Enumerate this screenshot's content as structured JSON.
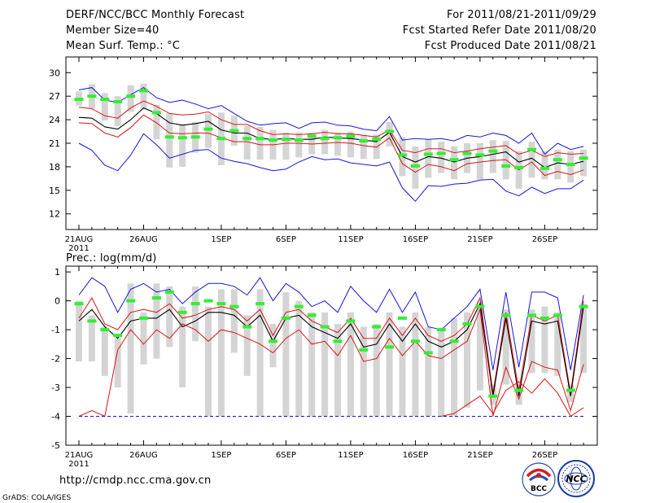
{
  "header": {
    "title": "DERF/NCC/BCC Monthly Forecast",
    "member_size": "Member Size=40",
    "variable": "Mean Surf. Temp.: °C",
    "forecast_period": "For 2011/08/21-2011/09/29",
    "fcst_started": "Fcst Started Refer Date 2011/08/20",
    "fcst_produced": "Fcst Produced Date 2011/08/21"
  },
  "footer": {
    "url": "http://cmdp.ncc.cma.gov.cn",
    "grads_credit": "GrADS: COLA/IGES",
    "logo_bcc_text": "BCC",
    "logo_ncc_text": "NCC"
  },
  "colors": {
    "envelope": "#1414dc",
    "ensemble_band": "#dc1414",
    "ensemble_mean": "#000000",
    "control": "#33ee33",
    "box": "#d4d4d4"
  },
  "chart_data": [
    {
      "type": "line",
      "title": "Mean Surf. Temp.: °C",
      "ylim": [
        10,
        32
      ],
      "yticks": [
        12,
        15,
        18,
        21,
        24,
        27,
        30
      ],
      "xticks": [
        {
          "day": 0,
          "label": "21AUG"
        },
        {
          "day": 5,
          "label": "26AUG"
        },
        {
          "day": 11,
          "label": "1SEP"
        },
        {
          "day": 16,
          "label": "6SEP"
        },
        {
          "day": 21,
          "label": "11SEP"
        },
        {
          "day": 26,
          "label": "16SEP"
        },
        {
          "day": 31,
          "label": "21SEP"
        },
        {
          "day": 36,
          "label": "26SEP"
        }
      ],
      "first_year_label": "2011",
      "days": [
        0,
        1,
        2,
        3,
        4,
        5,
        6,
        7,
        8,
        9,
        10,
        11,
        12,
        13,
        14,
        15,
        16,
        17,
        18,
        19,
        20,
        21,
        22,
        23,
        24,
        25,
        26,
        27,
        28,
        29,
        30,
        31,
        32,
        33,
        34,
        35,
        36,
        37,
        38,
        39
      ],
      "series": [
        {
          "name": "max",
          "values": [
            27.8,
            28.1,
            26.5,
            26.2,
            27.2,
            28.1,
            26.8,
            26.2,
            26.5,
            26.0,
            25.4,
            25.8,
            24.8,
            23.8,
            23.3,
            23.5,
            23.6,
            22.9,
            23.6,
            23.7,
            23.3,
            23.2,
            22.8,
            22.6,
            24.4,
            21.4,
            21.6,
            21.5,
            21.6,
            21.3,
            22.0,
            21.8,
            22.3,
            22.0,
            21.0,
            22.3,
            19.6,
            21.0,
            20.2,
            20.6
          ]
        },
        {
          "name": "upper",
          "values": [
            25.6,
            25.4,
            24.5,
            24.2,
            25.5,
            26.4,
            25.7,
            24.8,
            24.6,
            24.7,
            25.0,
            24.0,
            23.4,
            23.4,
            22.6,
            22.1,
            22.2,
            22.1,
            22.2,
            22.4,
            22.2,
            22.2,
            22.0,
            21.8,
            22.7,
            20.1,
            19.8,
            20.3,
            20.3,
            19.8,
            20.0,
            20.3,
            20.5,
            20.7,
            19.6,
            20.1,
            19.3,
            19.8,
            19.6,
            19.7
          ]
        },
        {
          "name": "mean",
          "values": [
            24.3,
            24.2,
            23.1,
            22.8,
            24.0,
            25.5,
            24.8,
            23.6,
            23.3,
            23.5,
            23.8,
            22.7,
            22.3,
            22.3,
            21.6,
            21.5,
            21.6,
            21.5,
            21.5,
            21.8,
            21.7,
            21.6,
            21.4,
            21.2,
            22.4,
            19.3,
            18.6,
            19.3,
            19.1,
            18.6,
            19.1,
            19.3,
            19.6,
            19.9,
            18.6,
            19.1,
            17.9,
            18.5,
            18.3,
            18.7
          ]
        },
        {
          "name": "lower",
          "values": [
            23.6,
            23.5,
            22.3,
            21.8,
            23.0,
            24.6,
            23.6,
            22.3,
            22.2,
            22.3,
            22.3,
            21.7,
            21.2,
            21.2,
            20.8,
            20.8,
            21.0,
            21.0,
            20.9,
            21.0,
            21.1,
            21.0,
            20.7,
            20.5,
            21.7,
            18.4,
            17.3,
            18.3,
            18.0,
            17.5,
            18.4,
            18.6,
            18.8,
            18.9,
            17.6,
            18.6,
            16.9,
            17.4,
            17.0,
            17.6
          ]
        },
        {
          "name": "min",
          "values": [
            21.0,
            20.1,
            18.2,
            17.5,
            19.5,
            22.2,
            20.8,
            19.1,
            19.6,
            20.1,
            20.2,
            19.1,
            18.7,
            18.4,
            17.9,
            17.5,
            17.7,
            18.6,
            19.3,
            18.9,
            19.0,
            18.5,
            18.3,
            18.1,
            18.6,
            15.3,
            13.6,
            15.6,
            15.5,
            15.8,
            15.9,
            16.3,
            16.4,
            14.9,
            14.3,
            15.4,
            14.6,
            15.2,
            15.2,
            16.3
          ]
        },
        {
          "name": "control",
          "values": [
            26.6,
            27.0,
            26.6,
            26.3,
            27.0,
            27.7,
            24.9,
            21.8,
            21.7,
            21.8,
            22.8,
            21.6,
            22.6,
            21.6,
            21.6,
            21.4,
            21.5,
            21.4,
            21.9,
            21.6,
            21.7,
            21.9,
            21.3,
            21.5,
            22.5,
            19.5,
            18.1,
            19.6,
            19.7,
            18.9,
            19.7,
            19.5,
            20.0,
            18.1,
            17.9,
            20.2,
            17.8,
            18.9,
            18.3,
            19.1
          ]
        }
      ],
      "boxes": [
        [
          25.8,
          27.6
        ],
        [
          25.4,
          28.5
        ],
        [
          23.9,
          27.4
        ],
        [
          23.2,
          27.0
        ],
        [
          25.0,
          28.4
        ],
        [
          25.3,
          28.6
        ],
        [
          21.5,
          25.9
        ],
        [
          17.9,
          24.8
        ],
        [
          18.0,
          23.4
        ],
        [
          19.8,
          23.7
        ],
        [
          20.4,
          24.7
        ],
        [
          18.2,
          24.9
        ],
        [
          20.7,
          24.5
        ],
        [
          18.9,
          23.2
        ],
        [
          18.9,
          23.1
        ],
        [
          18.9,
          22.7
        ],
        [
          18.9,
          22.3
        ],
        [
          19.2,
          22.4
        ],
        [
          19.6,
          22.3
        ],
        [
          19.6,
          22.7
        ],
        [
          19.4,
          22.4
        ],
        [
          19.2,
          22.5
        ],
        [
          19.0,
          22.1
        ],
        [
          19.0,
          22.1
        ],
        [
          20.6,
          23.7
        ],
        [
          16.8,
          21.8
        ],
        [
          15.2,
          20.6
        ],
        [
          16.6,
          21.5
        ],
        [
          17.2,
          21.2
        ],
        [
          16.4,
          20.6
        ],
        [
          17.2,
          21.0
        ],
        [
          16.4,
          21.0
        ],
        [
          17.2,
          21.4
        ],
        [
          16.4,
          21.3
        ],
        [
          15.2,
          20.0
        ],
        [
          16.6,
          21.2
        ],
        [
          16.4,
          20.0
        ],
        [
          16.4,
          20.2
        ],
        [
          16.0,
          20.0
        ],
        [
          16.8,
          20.2
        ]
      ]
    },
    {
      "type": "line",
      "title": "Prec.: log(mm/d)",
      "ylim": [
        -5,
        1.2
      ],
      "yticks": [
        -5,
        -4,
        -3,
        -2,
        -1,
        0,
        1
      ],
      "xticks": [
        {
          "day": 0,
          "label": "21AUG"
        },
        {
          "day": 5,
          "label": "26AUG"
        },
        {
          "day": 11,
          "label": "1SEP"
        },
        {
          "day": 16,
          "label": "6SEP"
        },
        {
          "day": 21,
          "label": "11SEP"
        },
        {
          "day": 26,
          "label": "16SEP"
        },
        {
          "day": 31,
          "label": "21SEP"
        },
        {
          "day": 36,
          "label": "26SEP"
        }
      ],
      "first_year_label": "2011",
      "days": [
        0,
        1,
        2,
        3,
        4,
        5,
        6,
        7,
        8,
        9,
        10,
        11,
        12,
        13,
        14,
        15,
        16,
        17,
        18,
        19,
        20,
        21,
        22,
        23,
        24,
        25,
        26,
        27,
        28,
        29,
        30,
        31,
        32,
        33,
        34,
        35,
        36,
        37,
        38,
        39
      ],
      "series": [
        {
          "name": "max",
          "values": [
            0.2,
            0.8,
            0.5,
            -0.4,
            0.4,
            0.6,
            0.3,
            0.4,
            -0.1,
            0.3,
            0.6,
            0.6,
            0.5,
            0.2,
            0.8,
            0.0,
            0.6,
            0.3,
            -0.2,
            0.0,
            -0.4,
            0.5,
            0.0,
            -0.4,
            0.4,
            -0.4,
            0.3,
            -0.9,
            -1.0,
            -0.6,
            -0.2,
            0.4,
            -2.4,
            0.3,
            -2.3,
            0.3,
            0.3,
            0.1,
            -2.4,
            0.2
          ]
        },
        {
          "name": "upper",
          "values": [
            -0.6,
            0.1,
            -0.8,
            -1.0,
            -0.4,
            -0.3,
            -0.4,
            -0.1,
            -0.6,
            -0.5,
            -0.3,
            -0.2,
            -0.3,
            -0.7,
            -0.3,
            -1.2,
            -0.4,
            -0.3,
            -0.7,
            -0.9,
            -1.1,
            -0.6,
            -1.3,
            -1.3,
            -0.6,
            -1.2,
            -0.6,
            -1.2,
            -1.4,
            -1.2,
            -0.8,
            0.1,
            -3.2,
            -0.4,
            -3.1,
            -0.5,
            -0.7,
            -0.5,
            -3.2,
            0.0
          ]
        },
        {
          "name": "mean",
          "values": [
            -0.7,
            -0.3,
            -0.9,
            -1.3,
            -0.7,
            -0.6,
            -0.6,
            -0.3,
            -0.9,
            -0.7,
            -0.4,
            -0.4,
            -0.5,
            -0.9,
            -0.5,
            -1.4,
            -0.6,
            -0.5,
            -0.9,
            -1.1,
            -1.3,
            -0.8,
            -1.6,
            -1.5,
            -0.8,
            -1.4,
            -0.8,
            -1.4,
            -1.6,
            -1.4,
            -1.0,
            -0.1,
            -3.3,
            -0.6,
            -3.3,
            -0.7,
            -0.8,
            -0.7,
            -3.3,
            -0.2
          ]
        },
        {
          "name": "lower",
          "values": [
            -4.0,
            -3.8,
            -4.0,
            -1.7,
            -1.0,
            -1.5,
            -1.0,
            -1.3,
            -0.8,
            -1.0,
            -1.4,
            -1.0,
            -1.1,
            -1.3,
            -1.5,
            -1.8,
            -1.3,
            -1.0,
            -1.5,
            -1.4,
            -1.9,
            -1.2,
            -2.1,
            -2.0,
            -1.3,
            -1.9,
            -1.4,
            -1.9,
            -2.0,
            -1.7,
            -1.4,
            -0.3,
            -4.0,
            -2.3,
            -3.4,
            -2.1,
            -2.3,
            -2.4,
            -3.8,
            -2.2
          ]
        },
        {
          "name": "min",
          "values": [
            -4.0,
            -4.0,
            -4.0,
            -4.0,
            -4.0,
            -4.0,
            -4.0,
            -4.0,
            -4.0,
            -4.0,
            -4.0,
            -4.0,
            -4.0,
            -4.0,
            -4.0,
            -4.0,
            -4.0,
            -4.0,
            -4.0,
            -4.0,
            -4.0,
            -4.0,
            -4.0,
            -4.0,
            -4.0,
            -4.0,
            -4.0,
            -4.0,
            -4.0,
            -4.0,
            -4.0,
            -4.0,
            -4.0,
            -4.0,
            -4.0,
            -4.0,
            -4.0,
            -4.0,
            -4.0,
            -4.0
          ]
        },
        {
          "name": "min_tail",
          "values": [
            null,
            null,
            null,
            null,
            null,
            null,
            null,
            null,
            null,
            null,
            null,
            null,
            null,
            null,
            null,
            null,
            null,
            null,
            null,
            null,
            null,
            null,
            null,
            null,
            null,
            null,
            null,
            null,
            -4.0,
            -3.9,
            -3.6,
            -3.3,
            -3.9,
            -3.1,
            -2.8,
            -3.2,
            -2.7,
            -3.2,
            -4.0,
            -3.7
          ]
        },
        {
          "name": "control",
          "values": [
            -0.1,
            -0.7,
            -1.0,
            -1.2,
            0.0,
            -0.6,
            0.1,
            0.3,
            -0.4,
            -0.1,
            0.0,
            -0.1,
            -0.2,
            -0.9,
            -0.1,
            -1.4,
            -0.6,
            -0.2,
            -0.5,
            -0.9,
            -1.4,
            -0.7,
            -1.7,
            -0.9,
            -1.6,
            -0.6,
            -1.4,
            -1.8,
            -1.0,
            -1.4,
            -0.8,
            -0.2,
            -3.3,
            -0.5,
            -3.1,
            -0.5,
            -0.6,
            -0.5,
            -3.1,
            -0.2
          ]
        }
      ],
      "boxes": [
        [
          -2.1,
          0.0
        ],
        [
          -2.1,
          -0.5
        ],
        [
          -2.6,
          -0.9
        ],
        [
          -3.0,
          -1.3
        ],
        [
          -3.9,
          0.6
        ],
        [
          -2.2,
          -0.4
        ],
        [
          -2.0,
          0.6
        ],
        [
          -1.6,
          0.5
        ],
        [
          -3.0,
          -0.2
        ],
        [
          -1.4,
          0.5
        ],
        [
          -4.0,
          -0.2
        ],
        [
          -4.0,
          0.4
        ],
        [
          -1.8,
          0.4
        ],
        [
          -2.6,
          -0.5
        ],
        [
          -4.0,
          0.4
        ],
        [
          -2.3,
          -0.8
        ],
        [
          -4.0,
          0.3
        ],
        [
          -4.0,
          0.0
        ],
        [
          -4.0,
          -0.4
        ],
        [
          -4.0,
          -0.4
        ],
        [
          -4.0,
          -0.8
        ],
        [
          -4.0,
          -0.4
        ],
        [
          -4.0,
          -0.9
        ],
        [
          -4.0,
          -0.8
        ],
        [
          -4.0,
          -0.4
        ],
        [
          -4.0,
          -0.9
        ],
        [
          -4.0,
          -0.4
        ],
        [
          -4.0,
          -0.9
        ],
        [
          -4.0,
          -1.0
        ],
        [
          -4.0,
          -0.6
        ],
        [
          -3.7,
          -0.4
        ],
        [
          -3.1,
          0.0
        ],
        [
          -3.6,
          -2.9
        ],
        [
          -2.9,
          -0.3
        ],
        [
          -3.6,
          -2.9
        ],
        [
          -2.5,
          -0.3
        ],
        [
          -2.5,
          -0.2
        ],
        [
          -2.6,
          -0.4
        ],
        [
          -3.5,
          -2.9
        ],
        [
          -2.5,
          -0.1
        ]
      ]
    }
  ]
}
